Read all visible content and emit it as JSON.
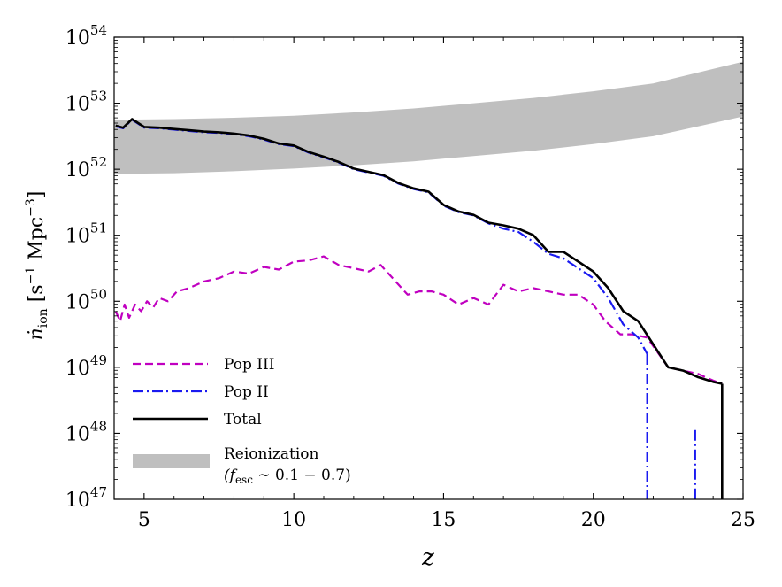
{
  "chart_data": {
    "type": "line",
    "xlabel": "z",
    "ylabel": {
      "main": "ṅ",
      "sub": "ion",
      "units_pre": " [s",
      "sup1": "−1",
      "units_mid": " Mpc",
      "sup2": "−3",
      "units_post": "]"
    },
    "xlim": [
      4,
      25
    ],
    "ylim_log10": [
      47,
      54
    ],
    "x_ticks": [
      5,
      10,
      15,
      20,
      25
    ],
    "x_tick_labels": [
      "5",
      "10",
      "15",
      "20",
      "25"
    ],
    "y_ticks_log10": [
      47,
      48,
      49,
      50,
      51,
      52,
      53,
      54
    ],
    "y_tick_labels": [
      {
        "base": "10",
        "exp": "47"
      },
      {
        "base": "10",
        "exp": "48"
      },
      {
        "base": "10",
        "exp": "49"
      },
      {
        "base": "10",
        "exp": "50"
      },
      {
        "base": "10",
        "exp": "51"
      },
      {
        "base": "10",
        "exp": "52"
      },
      {
        "base": "10",
        "exp": "53"
      },
      {
        "base": "10",
        "exp": "54"
      }
    ],
    "band": {
      "name": "Reionization",
      "label_line1": "Reionization",
      "label_line2_pre": "(f",
      "label_line2_sub": "esc",
      "label_line2_post": " ∼ 0.1 − 0.7)",
      "color": "#bfbfbf",
      "x": [
        4,
        6,
        8,
        10,
        12,
        14,
        16,
        18,
        20,
        22,
        25
      ],
      "lower_log10": [
        51.93,
        51.94,
        51.97,
        52.01,
        52.06,
        52.12,
        52.2,
        52.28,
        52.38,
        52.5,
        52.8
      ],
      "upper_log10": [
        52.75,
        52.76,
        52.78,
        52.81,
        52.86,
        52.92,
        53.0,
        53.08,
        53.18,
        53.3,
        53.63
      ]
    },
    "series": [
      {
        "name": "Pop III",
        "color": "#c000c0",
        "dash": "9,5",
        "x": [
          4.05,
          4.2,
          4.35,
          4.5,
          4.7,
          4.9,
          5.1,
          5.3,
          5.5,
          5.8,
          6.1,
          6.5,
          7.0,
          7.5,
          8.0,
          8.5,
          9.0,
          9.5,
          10.0,
          10.5,
          11.0,
          11.5,
          12.0,
          12.5,
          12.9,
          13.4,
          13.8,
          14.2,
          14.6,
          15.0,
          15.5,
          16.0,
          16.5,
          17.0,
          17.5,
          18.0,
          18.5,
          19.0,
          19.5,
          20.0,
          20.4,
          20.9,
          21.3,
          21.8,
          22.5,
          23.0,
          23.5,
          24.0,
          24.3
        ],
        "log10": [
          49.85,
          49.7,
          49.95,
          49.75,
          49.95,
          49.85,
          50.0,
          49.9,
          50.05,
          50.0,
          50.15,
          50.2,
          50.3,
          50.35,
          50.45,
          50.42,
          50.52,
          50.48,
          50.6,
          50.62,
          50.68,
          50.55,
          50.5,
          50.45,
          50.55,
          50.3,
          50.1,
          50.15,
          50.15,
          50.1,
          49.95,
          50.05,
          49.95,
          50.25,
          50.15,
          50.2,
          50.15,
          50.1,
          50.1,
          49.95,
          49.7,
          49.5,
          49.5,
          49.45,
          49.0,
          48.95,
          48.9,
          48.8,
          48.75
        ]
      },
      {
        "name": "Pop II",
        "color": "#1a1af0",
        "dash": "12,4,2,4",
        "x": [
          4.05,
          4.3,
          4.6,
          5.0,
          5.5,
          6.0,
          6.5,
          7.0,
          7.5,
          8.0,
          8.5,
          9.0,
          9.5,
          10.0,
          10.5,
          11.0,
          11.5,
          12.0,
          12.5,
          13.0,
          13.5,
          14.0,
          14.5,
          15.0,
          15.5,
          16.0,
          16.5,
          17.0,
          17.5,
          18.0,
          18.5,
          19.0,
          19.5,
          20.0,
          20.5,
          21.0,
          21.5,
          21.8
        ],
        "log10": [
          52.65,
          52.62,
          52.75,
          52.63,
          52.62,
          52.6,
          52.58,
          52.56,
          52.55,
          52.53,
          52.5,
          52.45,
          52.38,
          52.35,
          52.25,
          52.18,
          52.1,
          52.0,
          51.95,
          51.9,
          51.78,
          51.7,
          51.65,
          51.45,
          51.35,
          51.3,
          51.18,
          51.1,
          51.05,
          50.9,
          50.72,
          50.65,
          50.5,
          50.35,
          50.05,
          49.65,
          49.45,
          49.2
        ]
      },
      {
        "name": "Total",
        "color": "#000000",
        "dash": "",
        "x": [
          4.05,
          4.3,
          4.6,
          5.0,
          5.5,
          6.0,
          6.5,
          7.0,
          7.5,
          8.0,
          8.5,
          9.0,
          9.5,
          10.0,
          10.5,
          11.0,
          11.5,
          12.0,
          12.5,
          13.0,
          13.5,
          14.0,
          14.5,
          15.0,
          15.5,
          16.0,
          16.5,
          17.0,
          17.5,
          18.0,
          18.5,
          19.0,
          19.5,
          20.0,
          20.5,
          21.0,
          21.5,
          22.0,
          22.5,
          23.0,
          23.5,
          24.0,
          24.3
        ],
        "log10": [
          52.66,
          52.63,
          52.76,
          52.64,
          52.63,
          52.61,
          52.59,
          52.57,
          52.56,
          52.54,
          52.51,
          52.46,
          52.39,
          52.36,
          52.26,
          52.19,
          52.11,
          52.01,
          51.96,
          51.91,
          51.79,
          51.71,
          51.66,
          51.46,
          51.36,
          51.31,
          51.19,
          51.15,
          51.1,
          51.0,
          50.75,
          50.75,
          50.6,
          50.45,
          50.2,
          49.85,
          49.7,
          49.35,
          49.0,
          48.95,
          48.85,
          48.78,
          48.75
        ]
      }
    ],
    "extra_segments": [
      {
        "series": "Pop II",
        "x": 21.8,
        "from_log10": 49.2,
        "to_log10": 47
      },
      {
        "series": "Pop II",
        "x": 23.4,
        "from_log10": 48.05,
        "to_log10": 47
      },
      {
        "series": "Total",
        "x": 24.3,
        "from_log10": 48.75,
        "to_log10": 47
      }
    ],
    "legend_position": "lower-left",
    "grid": false
  }
}
